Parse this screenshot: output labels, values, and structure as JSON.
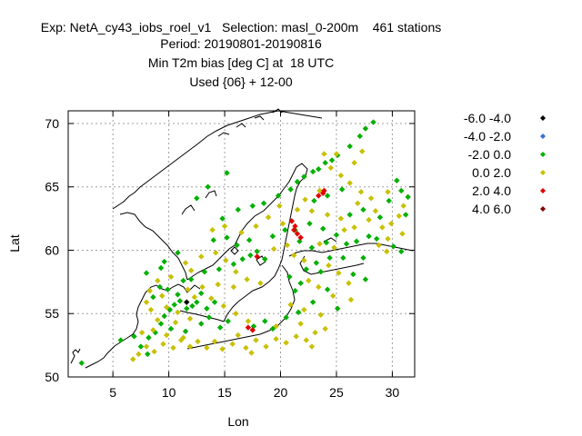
{
  "header": {
    "line1": "Exp: NetA_cy43_iobs_roel_v1   Selection: masl_0-200m    461 stations",
    "line2": "Period: 20190801-20190816",
    "line3": "Min T2m bias [deg C] at  18 UTC",
    "line4": "Used {06} + 12-00"
  },
  "chart_data": {
    "type": "scatter",
    "title": "Min T2m bias [deg C] at  18 UTC",
    "xlabel": "Lon",
    "ylabel": "Lat",
    "xlim": [
      1,
      32
    ],
    "ylim": [
      50,
      71
    ],
    "xticks": [
      5,
      10,
      15,
      20,
      25,
      30
    ],
    "yticks": [
      50,
      55,
      60,
      65,
      70
    ],
    "grid": true,
    "legend_position": "right",
    "legend": [
      {
        "label": "-6.0 -4.0",
        "color": "#000000"
      },
      {
        "label": "-4.0 -2.0",
        "color": "#3a6fd8"
      },
      {
        "label": "-2.0 0.0",
        "color": "#00b000"
      },
      {
        "label": "0.0 2.0",
        "color": "#c8c000"
      },
      {
        "label": "2.0 4.0",
        "color": "#e00000"
      },
      {
        "label": "4.0 6.0",
        "color": "#800000"
      }
    ],
    "series": [
      {
        "name": "-2.0 0.0",
        "color": "#00b000",
        "points": [
          [
            2.2,
            51.1
          ],
          [
            7.5,
            52.4
          ],
          [
            8.2,
            53.1
          ],
          [
            8.8,
            53.5
          ],
          [
            9.3,
            54.2
          ],
          [
            9.6,
            54.8
          ],
          [
            10.1,
            55.3
          ],
          [
            10.5,
            55.7
          ],
          [
            11.0,
            56.0
          ],
          [
            11.6,
            55.4
          ],
          [
            12.1,
            55.6
          ],
          [
            12.5,
            55.9
          ],
          [
            10.8,
            56.5
          ],
          [
            9.9,
            56.9
          ],
          [
            9.2,
            57.1
          ],
          [
            8.6,
            56.3
          ],
          [
            12.9,
            56.6
          ],
          [
            13.4,
            55.4
          ],
          [
            14.1,
            55.9
          ],
          [
            11.3,
            57.6
          ],
          [
            12.0,
            57.7
          ],
          [
            13.2,
            58.3
          ],
          [
            14.5,
            58.5
          ],
          [
            15.8,
            58.9
          ],
          [
            16.6,
            59.3
          ],
          [
            17.3,
            59.6
          ],
          [
            17.9,
            59.9
          ],
          [
            18.6,
            59.3
          ],
          [
            16.1,
            60.4
          ],
          [
            17.2,
            60.8
          ],
          [
            15.2,
            61.0
          ],
          [
            14.0,
            60.8
          ],
          [
            14.8,
            62.5
          ],
          [
            16.2,
            63.2
          ],
          [
            17.5,
            63.5
          ],
          [
            18.5,
            63.7
          ],
          [
            19.8,
            64.3
          ],
          [
            20.9,
            64.8
          ],
          [
            21.5,
            65.4
          ],
          [
            22.1,
            65.8
          ],
          [
            22.9,
            66.2
          ],
          [
            23.4,
            66.4
          ],
          [
            24.0,
            66.9
          ],
          [
            24.6,
            67.1
          ],
          [
            25.1,
            67.5
          ],
          [
            26.2,
            68.2
          ],
          [
            27.1,
            69.0
          ],
          [
            27.6,
            69.6
          ],
          [
            28.3,
            70.1
          ],
          [
            23.0,
            63.9
          ],
          [
            24.2,
            64.3
          ],
          [
            25.5,
            64.8
          ],
          [
            26.2,
            62.8
          ],
          [
            27.4,
            63.2
          ],
          [
            28.9,
            62.6
          ],
          [
            29.7,
            63.9
          ],
          [
            30.8,
            64.7
          ],
          [
            31.2,
            62.8
          ],
          [
            25.0,
            61.2
          ],
          [
            24.1,
            60.6
          ],
          [
            22.8,
            60.2
          ],
          [
            21.7,
            60.7
          ],
          [
            21.3,
            61.6
          ],
          [
            22.6,
            62.1
          ],
          [
            23.8,
            61.7
          ],
          [
            25.9,
            60.5
          ],
          [
            26.8,
            60.7
          ],
          [
            27.9,
            61.1
          ],
          [
            28.6,
            60.9
          ],
          [
            30.1,
            60.3
          ],
          [
            30.8,
            59.9
          ],
          [
            27.4,
            59.4
          ],
          [
            25.6,
            59.4
          ],
          [
            24.4,
            59.4
          ],
          [
            23.2,
            59.0
          ],
          [
            22.3,
            58.5
          ],
          [
            20.8,
            57.9
          ],
          [
            21.8,
            57.4
          ],
          [
            23.6,
            58.3
          ],
          [
            26.5,
            58.1
          ],
          [
            27.6,
            57.7
          ],
          [
            24.2,
            56.9
          ],
          [
            21.3,
            56.8
          ],
          [
            22.9,
            55.9
          ],
          [
            25.1,
            55.4
          ],
          [
            21.6,
            55.1
          ],
          [
            20.5,
            54.7
          ],
          [
            18.6,
            54.4
          ],
          [
            17.6,
            54.0
          ],
          [
            19.3,
            53.8
          ],
          [
            14.6,
            53.9
          ],
          [
            15.3,
            54.4
          ],
          [
            13.6,
            54.7
          ],
          [
            12.9,
            54.2
          ],
          [
            11.5,
            53.6
          ],
          [
            10.2,
            53.8
          ],
          [
            6.9,
            53.2
          ],
          [
            5.7,
            52.9
          ],
          [
            8.1,
            51.8
          ],
          [
            12.5,
            64.1
          ],
          [
            13.5,
            65.0
          ],
          [
            15.2,
            66.1
          ],
          [
            20.4,
            61.6
          ],
          [
            19.3,
            61.1
          ],
          [
            10.8,
            59.8
          ],
          [
            9.6,
            59.1
          ],
          [
            8.0,
            58.2
          ],
          [
            9.3,
            58.6
          ],
          [
            30.4,
            65.5
          ],
          [
            31.4,
            64.2
          ]
        ]
      },
      {
        "name": "0.0 2.0",
        "color": "#c8c000",
        "points": [
          [
            6.8,
            51.4
          ],
          [
            7.3,
            51.8
          ],
          [
            8.0,
            52.4
          ],
          [
            8.7,
            52.0
          ],
          [
            9.5,
            52.6
          ],
          [
            10.4,
            52.3
          ],
          [
            11.1,
            52.9
          ],
          [
            11.9,
            52.4
          ],
          [
            12.6,
            52.8
          ],
          [
            13.4,
            52.3
          ],
          [
            14.1,
            52.8
          ],
          [
            14.8,
            52.2
          ],
          [
            15.7,
            52.6
          ],
          [
            16.9,
            52.3
          ],
          [
            17.8,
            52.9
          ],
          [
            18.7,
            52.4
          ],
          [
            19.6,
            53.0
          ],
          [
            20.5,
            52.7
          ],
          [
            21.4,
            53.2
          ],
          [
            22.3,
            52.9
          ],
          [
            23.1,
            53.5
          ],
          [
            24.0,
            53.8
          ],
          [
            16.2,
            53.3
          ],
          [
            17.1,
            54.4
          ],
          [
            16.0,
            55.0
          ],
          [
            14.9,
            55.6
          ],
          [
            13.8,
            56.2
          ],
          [
            13.0,
            57.1
          ],
          [
            12.0,
            58.4
          ],
          [
            11.5,
            59.0
          ],
          [
            12.9,
            59.5
          ],
          [
            14.2,
            59.8
          ],
          [
            15.1,
            59.2
          ],
          [
            16.0,
            58.3
          ],
          [
            17.0,
            57.7
          ],
          [
            18.2,
            57.4
          ],
          [
            15.8,
            57.1
          ],
          [
            14.4,
            57.3
          ],
          [
            10.2,
            57.9
          ],
          [
            9.0,
            57.6
          ],
          [
            8.3,
            56.8
          ],
          [
            8.0,
            55.9
          ],
          [
            8.4,
            55.3
          ],
          [
            9.0,
            54.5
          ],
          [
            10.6,
            54.3
          ],
          [
            11.9,
            54.6
          ],
          [
            11.3,
            53.1
          ],
          [
            9.8,
            53.3
          ],
          [
            8.6,
            53.7
          ],
          [
            7.6,
            53.5
          ],
          [
            13.9,
            61.6
          ],
          [
            15.0,
            61.9
          ],
          [
            16.5,
            61.4
          ],
          [
            17.8,
            61.9
          ],
          [
            18.9,
            62.6
          ],
          [
            19.9,
            63.5
          ],
          [
            20.2,
            62.1
          ],
          [
            19.4,
            60.1
          ],
          [
            20.6,
            60.4
          ],
          [
            21.2,
            59.6
          ],
          [
            22.1,
            59.2
          ],
          [
            23.5,
            60.5
          ],
          [
            24.8,
            60.2
          ],
          [
            25.7,
            61.6
          ],
          [
            26.6,
            61.8
          ],
          [
            27.9,
            62.4
          ],
          [
            28.5,
            63.1
          ],
          [
            29.1,
            61.8
          ],
          [
            29.9,
            62.1
          ],
          [
            30.6,
            62.7
          ],
          [
            31.0,
            63.5
          ],
          [
            29.6,
            64.6
          ],
          [
            28.1,
            64.1
          ],
          [
            27.2,
            64.6
          ],
          [
            26.2,
            65.3
          ],
          [
            25.4,
            65.9
          ],
          [
            24.5,
            66.5
          ],
          [
            25.0,
            67.6
          ],
          [
            26.6,
            66.9
          ],
          [
            27.3,
            67.8
          ],
          [
            23.5,
            64.7
          ],
          [
            22.2,
            64.0
          ],
          [
            21.5,
            63.2
          ],
          [
            22.8,
            63.1
          ],
          [
            24.2,
            62.8
          ],
          [
            25.4,
            62.5
          ],
          [
            26.9,
            63.7
          ],
          [
            28.8,
            60.4
          ],
          [
            29.6,
            60.9
          ],
          [
            24.3,
            58.8
          ],
          [
            25.2,
            58.2
          ],
          [
            26.1,
            57.4
          ],
          [
            22.5,
            57.6
          ],
          [
            23.4,
            57.1
          ],
          [
            24.7,
            56.4
          ],
          [
            26.3,
            56.1
          ],
          [
            20.9,
            55.7
          ],
          [
            22.1,
            55.3
          ],
          [
            23.6,
            54.9
          ],
          [
            19.6,
            54.0
          ],
          [
            21.8,
            54.2
          ],
          [
            9.8,
            55.5
          ],
          [
            10.8,
            55.1
          ],
          [
            12.3,
            56.3
          ],
          [
            11.7,
            56.9
          ],
          [
            9.4,
            56.4
          ],
          [
            23.9,
            67.6
          ],
          [
            29.5,
            59.9
          ],
          [
            30.9,
            61.3
          ],
          [
            22.8,
            52.4
          ],
          [
            17.4,
            51.9
          ]
        ]
      },
      {
        "name": "2.0 4.0",
        "color": "#e00000",
        "points": [
          [
            21.0,
            62.3
          ],
          [
            21.3,
            61.9
          ],
          [
            21.2,
            61.6
          ],
          [
            21.5,
            61.3
          ],
          [
            21.8,
            61.0
          ],
          [
            23.4,
            64.3
          ],
          [
            23.8,
            64.5
          ],
          [
            23.9,
            64.7
          ],
          [
            17.1,
            53.9
          ],
          [
            17.5,
            53.7
          ],
          [
            17.9,
            59.5
          ]
        ]
      },
      {
        "name": "-6.0 -4.0",
        "color": "#000000",
        "points": [
          [
            11.6,
            55.9
          ]
        ]
      }
    ]
  }
}
